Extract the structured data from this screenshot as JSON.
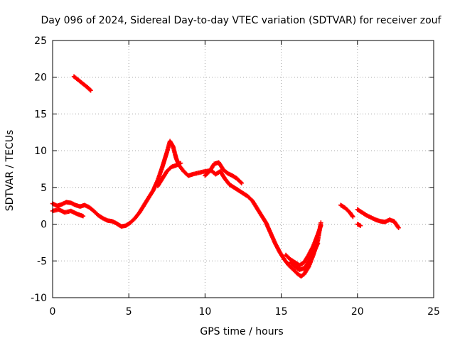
{
  "chart_data": {
    "type": "scatter",
    "title": "Day 096 of 2024, Sidereal Day-to-day VTEC variation (SDTVAR) for receiver zouf",
    "xlabel": "GPS time / hours",
    "ylabel": "SDTVAR / TECUs",
    "xlim": [
      0,
      25
    ],
    "ylim": [
      -10,
      25
    ],
    "xticks": [
      0,
      5,
      10,
      15,
      20,
      25
    ],
    "yticks": [
      -10,
      -5,
      0,
      5,
      10,
      15,
      20,
      25
    ],
    "grid": true,
    "marker": "+",
    "color": "#ff0000",
    "series": [
      {
        "name": "SDTVAR",
        "segments": [
          [
            [
              1.4,
              20.1
            ],
            [
              1.7,
              19.6
            ],
            [
              2.0,
              19.1
            ],
            [
              2.3,
              18.6
            ],
            [
              2.5,
              18.2
            ]
          ],
          [
            [
              0.0,
              2.8
            ],
            [
              0.3,
              2.5
            ],
            [
              0.6,
              2.7
            ],
            [
              0.9,
              3.0
            ],
            [
              1.2,
              2.9
            ],
            [
              1.5,
              2.6
            ],
            [
              1.8,
              2.4
            ],
            [
              2.1,
              2.6
            ],
            [
              2.4,
              2.3
            ],
            [
              2.7,
              1.8
            ],
            [
              3.0,
              1.2
            ],
            [
              3.3,
              0.8
            ],
            [
              3.6,
              0.5
            ],
            [
              3.9,
              0.4
            ],
            [
              4.2,
              0.1
            ],
            [
              4.5,
              -0.3
            ],
            [
              4.8,
              -0.2
            ],
            [
              5.1,
              0.2
            ],
            [
              5.4,
              0.8
            ],
            [
              5.7,
              1.6
            ],
            [
              6.0,
              2.6
            ],
            [
              6.3,
              3.6
            ],
            [
              6.6,
              4.6
            ],
            [
              6.9,
              6.0
            ],
            [
              7.2,
              7.8
            ],
            [
              7.5,
              9.8
            ],
            [
              7.7,
              11.3
            ],
            [
              7.9,
              10.6
            ],
            [
              8.1,
              9.0
            ],
            [
              8.3,
              8.0
            ],
            [
              8.6,
              7.2
            ],
            [
              8.9,
              6.6
            ],
            [
              9.2,
              6.8
            ],
            [
              9.6,
              7.0
            ],
            [
              10.0,
              7.2
            ],
            [
              10.4,
              7.3
            ],
            [
              10.7,
              6.8
            ],
            [
              11.0,
              7.2
            ],
            [
              11.3,
              6.2
            ],
            [
              11.6,
              5.4
            ],
            [
              11.9,
              5.0
            ],
            [
              12.2,
              4.6
            ],
            [
              12.5,
              4.2
            ],
            [
              12.8,
              3.8
            ],
            [
              13.1,
              3.2
            ],
            [
              13.4,
              2.2
            ],
            [
              13.7,
              1.2
            ],
            [
              14.0,
              0.2
            ],
            [
              14.3,
              -1.2
            ],
            [
              14.6,
              -2.6
            ],
            [
              14.9,
              -3.8
            ],
            [
              15.2,
              -4.8
            ],
            [
              15.5,
              -5.6
            ],
            [
              15.8,
              -6.2
            ],
            [
              16.1,
              -6.8
            ],
            [
              16.3,
              -7.1
            ],
            [
              16.5,
              -6.8
            ],
            [
              16.8,
              -5.8
            ],
            [
              17.1,
              -4.2
            ],
            [
              17.4,
              -2.2
            ],
            [
              17.6,
              0.2
            ]
          ],
          [
            [
              0.0,
              1.8
            ],
            [
              0.4,
              2.0
            ],
            [
              0.8,
              1.6
            ],
            [
              1.2,
              1.8
            ],
            [
              1.6,
              1.4
            ],
            [
              2.0,
              1.1
            ]
          ],
          [
            [
              6.9,
              5.2
            ],
            [
              7.2,
              6.2
            ],
            [
              7.5,
              7.2
            ],
            [
              7.8,
              7.8
            ],
            [
              8.1,
              8.0
            ],
            [
              8.4,
              8.3
            ]
          ],
          [
            [
              10.0,
              6.6
            ],
            [
              10.3,
              7.2
            ],
            [
              10.6,
              8.2
            ],
            [
              10.9,
              8.4
            ],
            [
              11.2,
              7.4
            ],
            [
              11.5,
              6.9
            ],
            [
              11.8,
              6.6
            ],
            [
              12.1,
              6.2
            ],
            [
              12.4,
              5.6
            ]
          ],
          [
            [
              15.3,
              -4.2
            ],
            [
              15.6,
              -4.8
            ],
            [
              15.9,
              -5.2
            ],
            [
              16.2,
              -5.6
            ],
            [
              16.5,
              -5.2
            ],
            [
              16.8,
              -4.2
            ],
            [
              17.1,
              -3.0
            ],
            [
              17.4,
              -1.4
            ],
            [
              17.6,
              -0.2
            ]
          ],
          [
            [
              15.6,
              -5.2
            ],
            [
              15.9,
              -5.8
            ],
            [
              16.2,
              -6.2
            ],
            [
              16.5,
              -6.0
            ],
            [
              16.8,
              -5.2
            ],
            [
              17.1,
              -4.0
            ],
            [
              17.4,
              -2.6
            ]
          ],
          [
            [
              18.9,
              2.6
            ],
            [
              19.2,
              2.2
            ],
            [
              19.5,
              1.6
            ],
            [
              19.7,
              1.0
            ]
          ],
          [
            [
              20.0,
              2.0
            ],
            [
              20.3,
              1.6
            ],
            [
              20.6,
              1.2
            ],
            [
              20.9,
              0.9
            ],
            [
              21.2,
              0.6
            ],
            [
              21.5,
              0.4
            ],
            [
              21.8,
              0.3
            ],
            [
              22.1,
              0.6
            ],
            [
              22.4,
              0.4
            ],
            [
              22.7,
              -0.5
            ]
          ],
          [
            [
              20.0,
              0.0
            ],
            [
              20.2,
              -0.2
            ]
          ]
        ]
      }
    ]
  }
}
